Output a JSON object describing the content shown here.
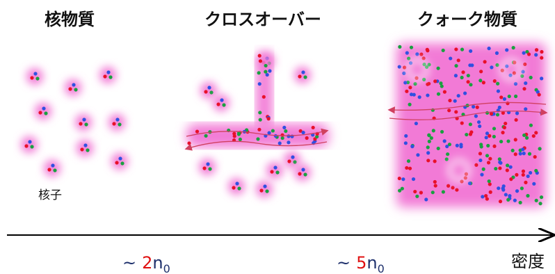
{
  "panels": [
    {
      "title": "核物質",
      "label": "核子"
    },
    {
      "title": "クロスオーバー"
    },
    {
      "title": "クォーク物質"
    }
  ],
  "axis": {
    "label": "密度",
    "markers": [
      {
        "prefix": "~",
        "coefficient": "2",
        "symbol": "n",
        "subscript": "0"
      },
      {
        "prefix": "~",
        "coefficient": "5",
        "symbol": "n",
        "subscript": "0"
      }
    ]
  }
}
